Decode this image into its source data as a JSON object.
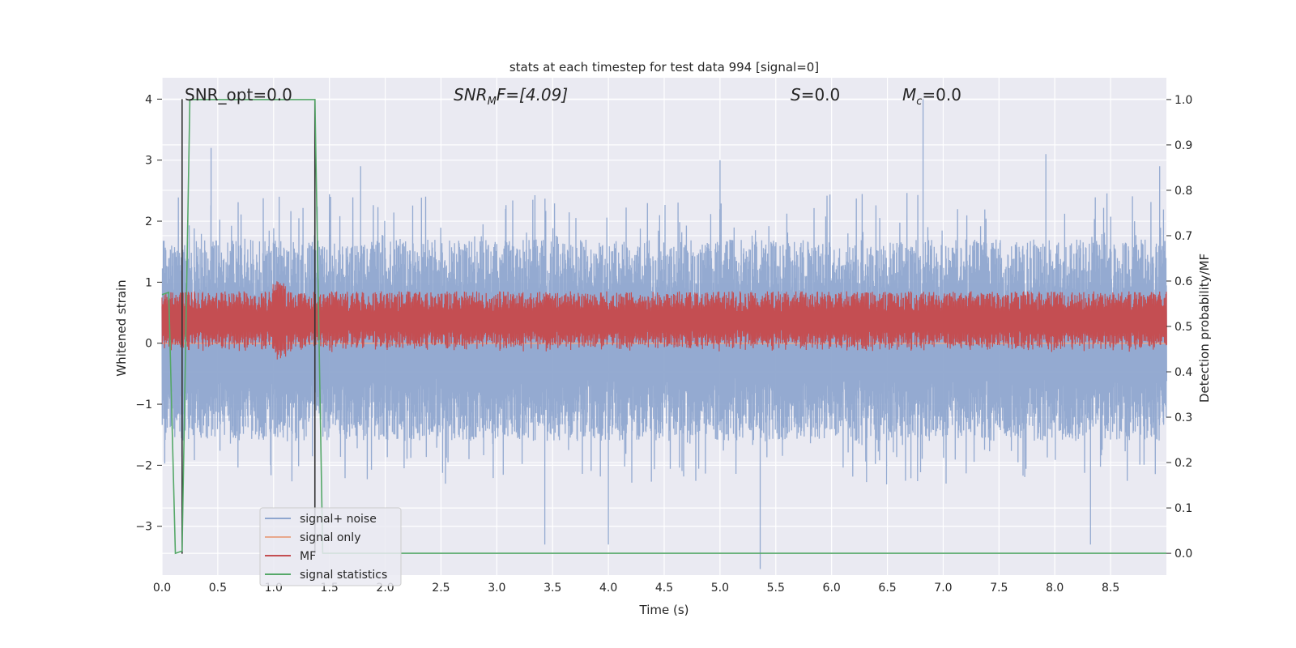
{
  "chart_data": {
    "type": "line",
    "title": "stats at each timestep for test data 994 [signal=0]",
    "xlabel": "Time (s)",
    "ylabel": "Whitened strain",
    "y2label": "Detection probability/MF",
    "xlim": [
      0.0,
      9.0
    ],
    "ylim": [
      -3.8,
      4.35
    ],
    "y2lim": [
      -0.048,
      1.048
    ],
    "xticks": [
      "0.0",
      "0.5",
      "1.0",
      "1.5",
      "2.0",
      "2.5",
      "3.0",
      "3.5",
      "4.0",
      "4.5",
      "5.0",
      "5.5",
      "6.0",
      "6.5",
      "7.0",
      "7.5",
      "8.0",
      "8.5"
    ],
    "yticks": [
      "4",
      "3",
      "2",
      "1",
      "0",
      "−1",
      "−2",
      "−3"
    ],
    "y2ticks": [
      "1.0",
      "0.9",
      "0.8",
      "0.7",
      "0.6",
      "0.5",
      "0.4",
      "0.3",
      "0.2",
      "0.1",
      "0.0"
    ],
    "grid": true,
    "legend_position": "lower-left",
    "annotations": {
      "snr_opt": "SNR_opt=0.0",
      "snr_mf_prefix": "SNR",
      "snr_mf_sub": "M",
      "snr_mf_rest": "F=[4.09]",
      "s_label": "S",
      "s_value": "=0.0",
      "mc_label": "M",
      "mc_sub": "c",
      "mc_value": "=0.0"
    },
    "series": [
      {
        "name": "signal+ noise",
        "axis": "left",
        "color": "#8fa6cf",
        "description_values": "noise band roughly between -2.3 and +2.5 with spikes to about +4 and -3.7",
        "envelope_upper": 1.7,
        "envelope_lower": -1.6,
        "spikes": [
          [
            0.44,
            3.2
          ],
          [
            1.05,
            2.4
          ],
          [
            1.78,
            2.9
          ],
          [
            3.43,
            -3.3
          ],
          [
            4.0,
            -3.3
          ],
          [
            5.0,
            3.0
          ],
          [
            5.36,
            -3.7
          ],
          [
            6.82,
            4.0
          ],
          [
            7.92,
            3.1
          ],
          [
            8.32,
            -3.3
          ],
          [
            8.94,
            2.9
          ]
        ]
      },
      {
        "name": "signal only",
        "axis": "left",
        "color": "#e8a88c",
        "values": [
          0.0,
          0.0
        ]
      },
      {
        "name": "MF",
        "axis": "right",
        "color": "#c44e52",
        "center": 0.51,
        "spread": 0.045,
        "peak": [
          1.05,
          0.6
        ]
      },
      {
        "name": "signal statistics",
        "axis": "right",
        "color": "#55a868",
        "x": [
          0.0,
          0.06,
          0.12,
          0.18,
          0.25,
          1.37,
          1.44,
          1.5,
          9.0
        ],
        "y": [
          0.57,
          0.575,
          0.0,
          0.005,
          1.0,
          1.0,
          0.0,
          0.0,
          0.0
        ]
      }
    ],
    "vertical_markers": [
      {
        "x": 0.18,
        "y_from": -3.45,
        "y_to": 4.0,
        "color": "#333333"
      },
      {
        "x": 1.37,
        "y_from": -3.45,
        "y_to": 4.0,
        "color": "#333333"
      }
    ]
  }
}
